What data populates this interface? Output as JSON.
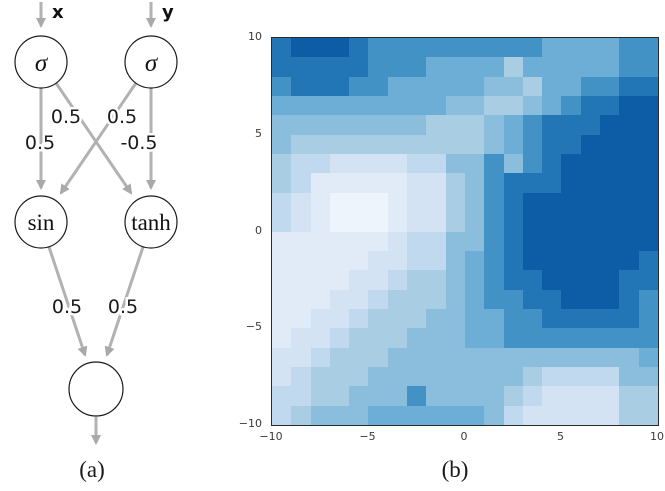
{
  "figure": {
    "panel_a_caption": "(a)",
    "panel_b_caption": "(b)"
  },
  "diagram": {
    "input_labels": {
      "left": "x",
      "right": "y"
    },
    "node_labels": {
      "sigma_left": "σ",
      "sigma_right": "σ",
      "sin": "sin",
      "tanh": "tanh",
      "output": ""
    },
    "weights": {
      "sigma_left_to_sin": "0.5",
      "sigma_left_to_tanh": "0.5",
      "sigma_right_to_sin": "0.5",
      "sigma_right_to_tanh": "-0.5",
      "sin_to_output": "0.5",
      "tanh_to_output": "0.5"
    },
    "edge_color": "#b2b2b2",
    "node_stroke_color": "#1a1a1a",
    "node_fill_color": "#ffffff"
  },
  "chart_data": {
    "type": "heatmap",
    "title": "",
    "xlabel": "",
    "ylabel": "",
    "x_range": [
      -10,
      10
    ],
    "y_range": [
      -10,
      10
    ],
    "x_ticks": [
      {
        "v": -10,
        "label": "−10"
      },
      {
        "v": -5,
        "label": "−5"
      },
      {
        "v": 0,
        "label": "0"
      },
      {
        "v": 5,
        "label": "5"
      },
      {
        "v": 10,
        "label": "10"
      }
    ],
    "y_ticks": [
      {
        "v": 10,
        "label": "10"
      },
      {
        "v": 5,
        "label": "5"
      },
      {
        "v": 0,
        "label": "0"
      },
      {
        "v": -5,
        "label": "−5"
      },
      {
        "v": -10,
        "label": "−10"
      }
    ],
    "tick_color": "#3a3a3a",
    "border_color": "#2b2b2b",
    "palette": [
      "#eef4fb",
      "#e1ebf7",
      "#d3e3f3",
      "#c1d9ee",
      "#a9cee4",
      "#8bbedd",
      "#6caed6",
      "#4292c6",
      "#2276b6",
      "#0d5ca6"
    ],
    "grid_note": "rows top-to-bottom = y 10 to -10, cols left-to-right = x -10 to 10, values index palette",
    "grid": [
      [
        8,
        9,
        9,
        9,
        8,
        7,
        7,
        7,
        7,
        7,
        7,
        7,
        7,
        7,
        6,
        6,
        6,
        6,
        7,
        7
      ],
      [
        8,
        8,
        8,
        8,
        8,
        7,
        7,
        7,
        6,
        6,
        6,
        6,
        4,
        6,
        6,
        6,
        6,
        6,
        7,
        7
      ],
      [
        7,
        8,
        8,
        8,
        7,
        7,
        6,
        6,
        6,
        6,
        6,
        5,
        5,
        4,
        6,
        6,
        7,
        7,
        8,
        8
      ],
      [
        6,
        6,
        6,
        6,
        6,
        6,
        6,
        6,
        6,
        5,
        5,
        4,
        4,
        5,
        6,
        7,
        8,
        8,
        9,
        9
      ],
      [
        5,
        5,
        5,
        5,
        5,
        5,
        5,
        5,
        4,
        4,
        4,
        5,
        6,
        7,
        8,
        8,
        8,
        9,
        9,
        9
      ],
      [
        5,
        4,
        4,
        4,
        4,
        4,
        4,
        4,
        4,
        4,
        4,
        5,
        6,
        7,
        8,
        8,
        9,
        9,
        9,
        9
      ],
      [
        4,
        3,
        3,
        2,
        2,
        2,
        2,
        3,
        3,
        5,
        5,
        7,
        5,
        7,
        8,
        9,
        9,
        9,
        9,
        9
      ],
      [
        4,
        3,
        1,
        1,
        1,
        1,
        1,
        2,
        2,
        4,
        5,
        7,
        8,
        8,
        8,
        9,
        9,
        9,
        9,
        9
      ],
      [
        3,
        2,
        1,
        0,
        0,
        0,
        1,
        2,
        2,
        4,
        5,
        7,
        8,
        9,
        9,
        9,
        9,
        9,
        9,
        9
      ],
      [
        3,
        2,
        1,
        0,
        0,
        0,
        1,
        2,
        2,
        4,
        5,
        7,
        8,
        9,
        9,
        9,
        9,
        9,
        9,
        9
      ],
      [
        1,
        1,
        1,
        1,
        1,
        1,
        2,
        3,
        3,
        5,
        5,
        7,
        8,
        9,
        9,
        9,
        9,
        9,
        9,
        9
      ],
      [
        1,
        1,
        1,
        1,
        1,
        2,
        2,
        3,
        3,
        5,
        6,
        7,
        8,
        9,
        9,
        9,
        9,
        9,
        9,
        8
      ],
      [
        1,
        1,
        1,
        1,
        2,
        2,
        3,
        4,
        4,
        5,
        6,
        7,
        8,
        8,
        9,
        9,
        9,
        9,
        8,
        8
      ],
      [
        1,
        1,
        1,
        2,
        2,
        3,
        4,
        4,
        4,
        5,
        6,
        7,
        7,
        8,
        8,
        9,
        9,
        9,
        8,
        7
      ],
      [
        1,
        1,
        2,
        2,
        3,
        4,
        4,
        4,
        5,
        5,
        6,
        6,
        7,
        7,
        8,
        8,
        8,
        8,
        8,
        7
      ],
      [
        1,
        2,
        2,
        3,
        4,
        4,
        4,
        5,
        5,
        5,
        6,
        6,
        7,
        7,
        7,
        7,
        7,
        7,
        7,
        7
      ],
      [
        2,
        2,
        3,
        4,
        4,
        4,
        5,
        5,
        5,
        5,
        5,
        5,
        5,
        5,
        5,
        5,
        5,
        5,
        5,
        6
      ],
      [
        2,
        3,
        4,
        4,
        4,
        5,
        5,
        5,
        5,
        5,
        5,
        5,
        5,
        4,
        3,
        3,
        3,
        3,
        5,
        5
      ],
      [
        3,
        3,
        4,
        4,
        5,
        5,
        5,
        7,
        5,
        5,
        5,
        5,
        4,
        3,
        2,
        2,
        2,
        2,
        4,
        4
      ],
      [
        3,
        4,
        5,
        5,
        5,
        6,
        6,
        6,
        6,
        6,
        6,
        5,
        3,
        2,
        2,
        2,
        2,
        2,
        4,
        4
      ]
    ]
  }
}
